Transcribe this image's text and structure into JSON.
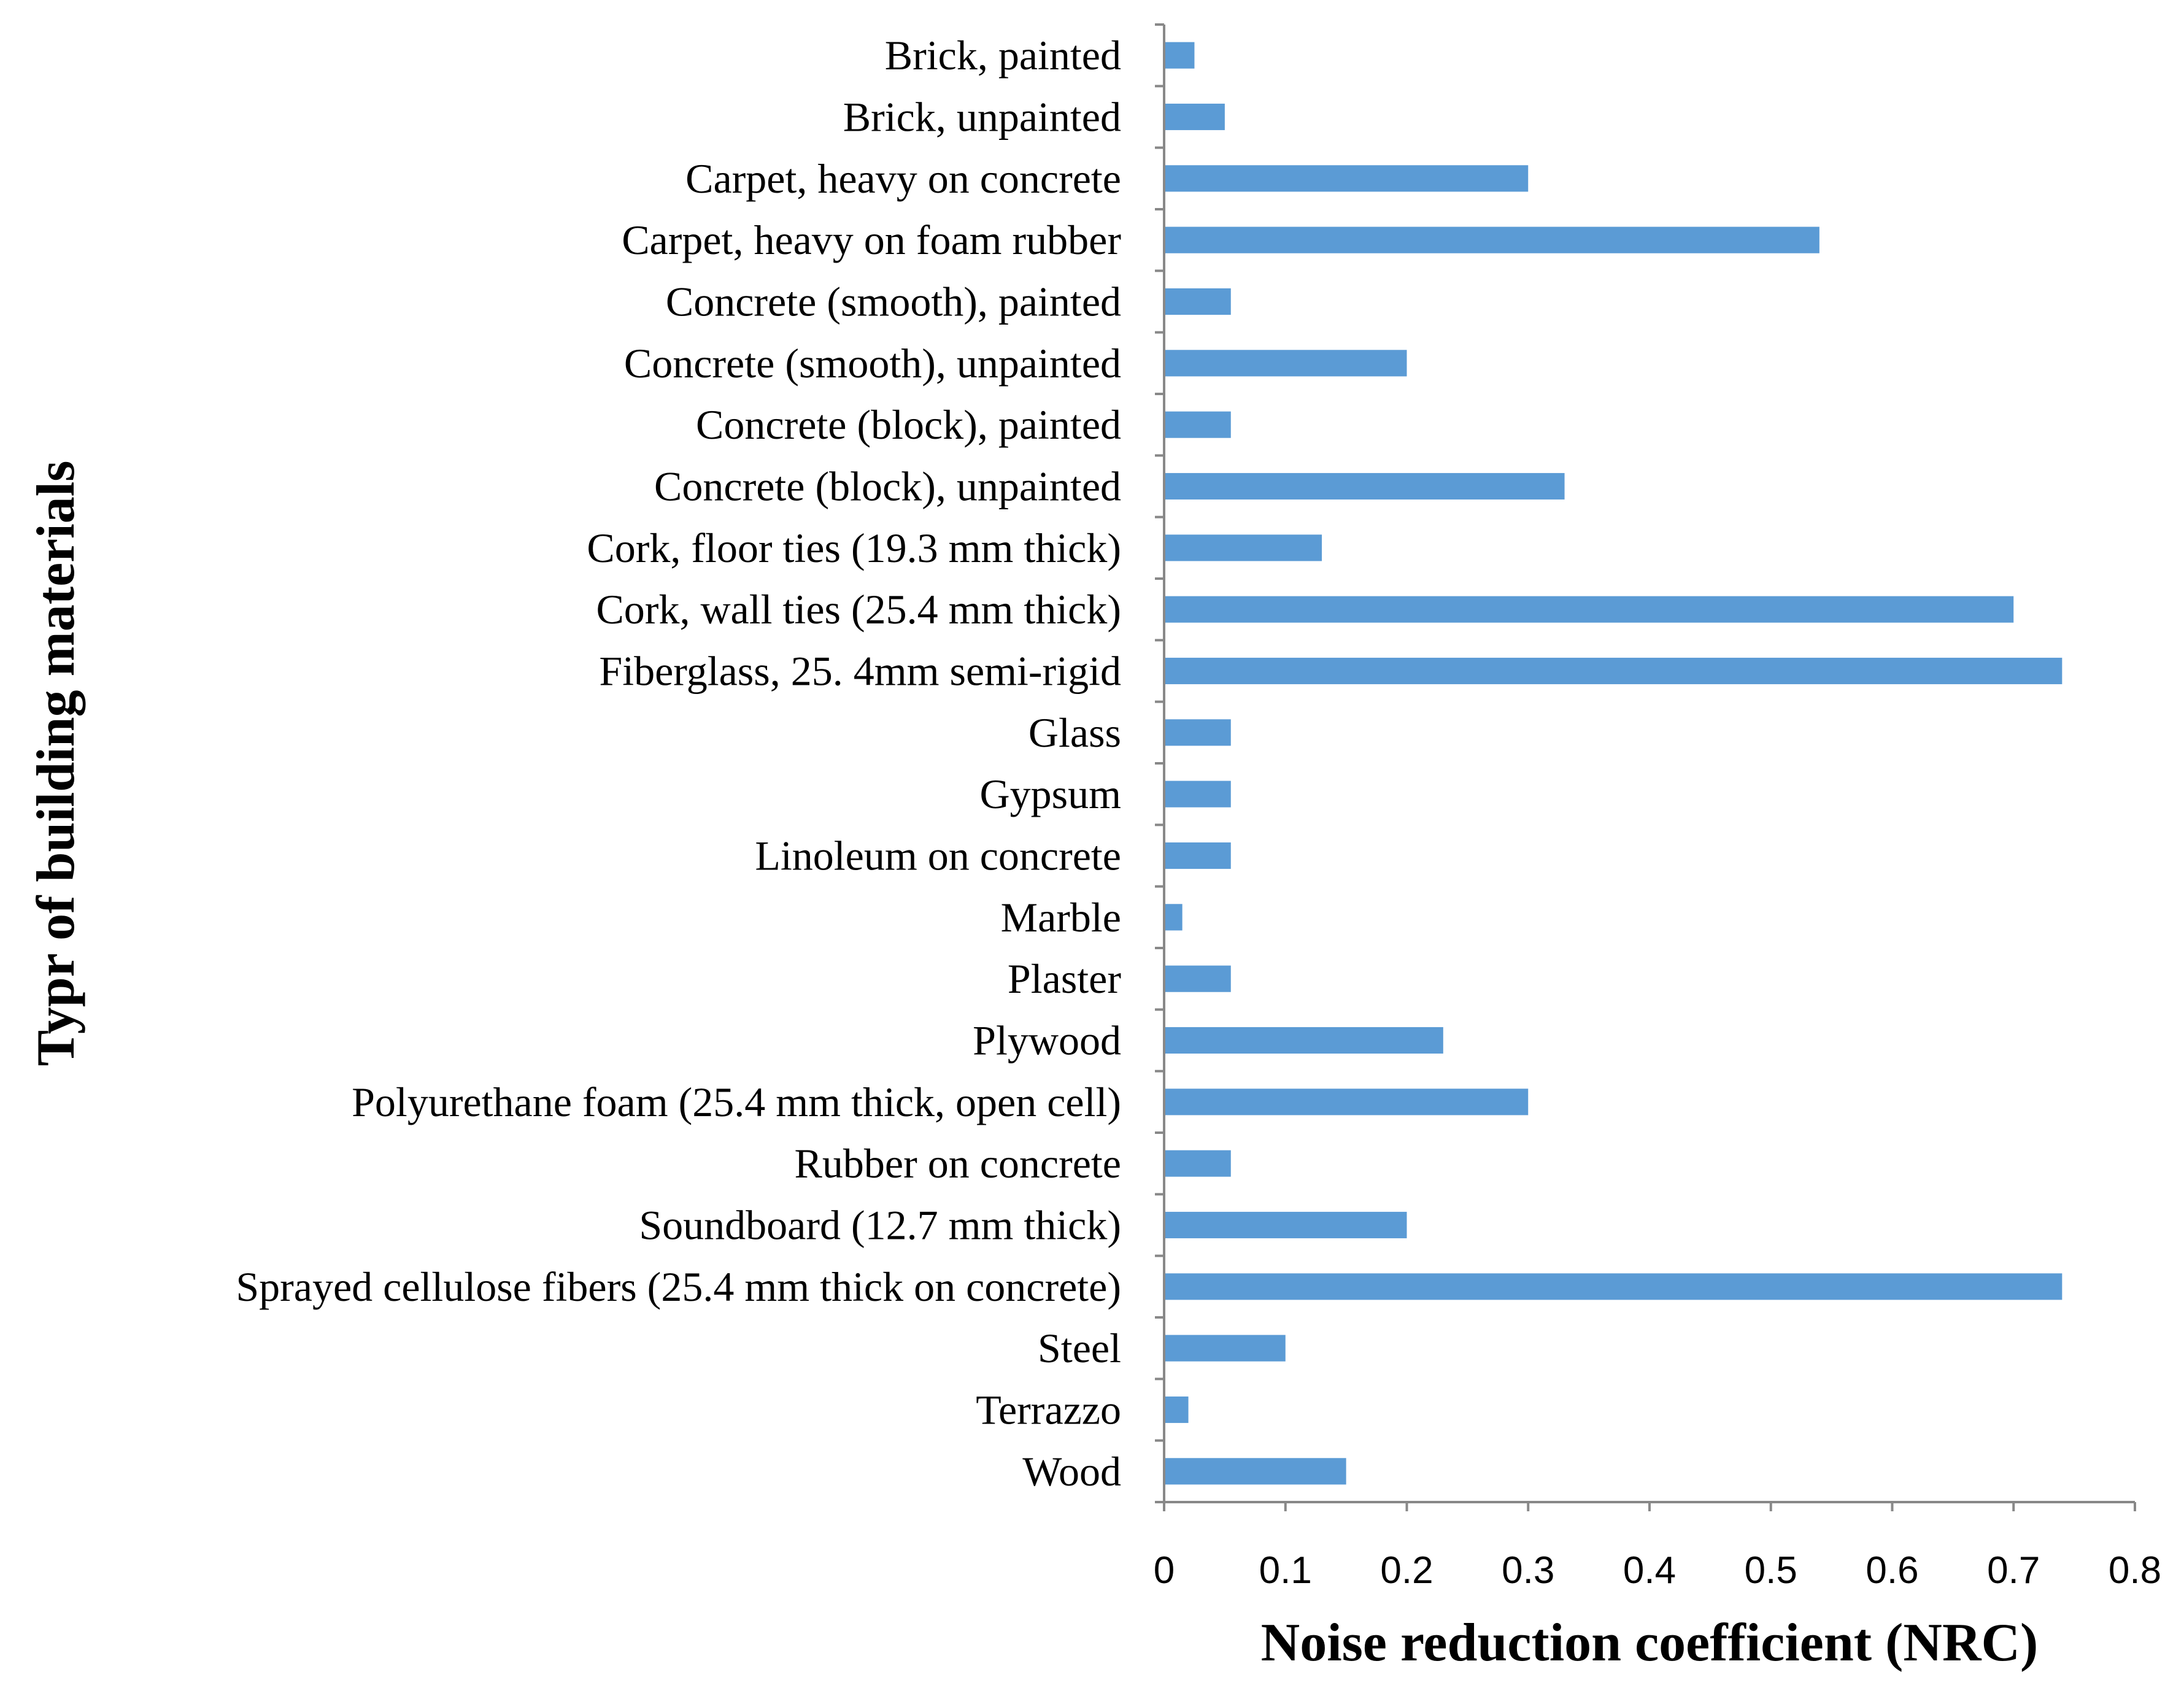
{
  "chart_data": {
    "type": "bar",
    "orientation": "horizontal",
    "title": "",
    "xlabel": "Noise reduction coefficient (NRC)",
    "ylabel": "Typr of building materials",
    "xlim": [
      0,
      0.8
    ],
    "xticks": [
      "0",
      "0.1",
      "0.2",
      "0.3",
      "0.4",
      "0.5",
      "0.6",
      "0.7",
      "0.8"
    ],
    "xtick_values": [
      0,
      0.1,
      0.2,
      0.3,
      0.4,
      0.5,
      0.6,
      0.7,
      0.8
    ],
    "grid": false,
    "bar_color": "#5b9bd5",
    "categories": [
      "Brick, painted",
      "Brick, unpainted",
      "Carpet, heavy on concrete",
      "Carpet, heavy on foam rubber",
      "Concrete (smooth), painted",
      "Concrete (smooth), unpainted",
      "Concrete (block), painted",
      "Concrete (block), unpainted",
      "Cork, floor ties (19.3 mm thick)",
      "Cork, wall ties (25.4 mm thick)",
      "Fiberglass, 25. 4mm semi-rigid",
      "Glass",
      "Gypsum",
      "Linoleum on concrete",
      "Marble",
      "Plaster",
      "Plywood",
      "Polyurethane foam (25.4 mm thick, open cell)",
      "Rubber on concrete",
      "Soundboard (12.7 mm thick)",
      "Sprayed cellulose fibers (25.4 mm thick on concrete)",
      "Steel",
      "Terrazzo",
      "Wood"
    ],
    "values": [
      0.025,
      0.05,
      0.3,
      0.54,
      0.055,
      0.2,
      0.055,
      0.33,
      0.13,
      0.7,
      0.74,
      0.055,
      0.055,
      0.055,
      0.015,
      0.055,
      0.23,
      0.3,
      0.055,
      0.2,
      0.74,
      0.1,
      0.02,
      0.15
    ]
  }
}
